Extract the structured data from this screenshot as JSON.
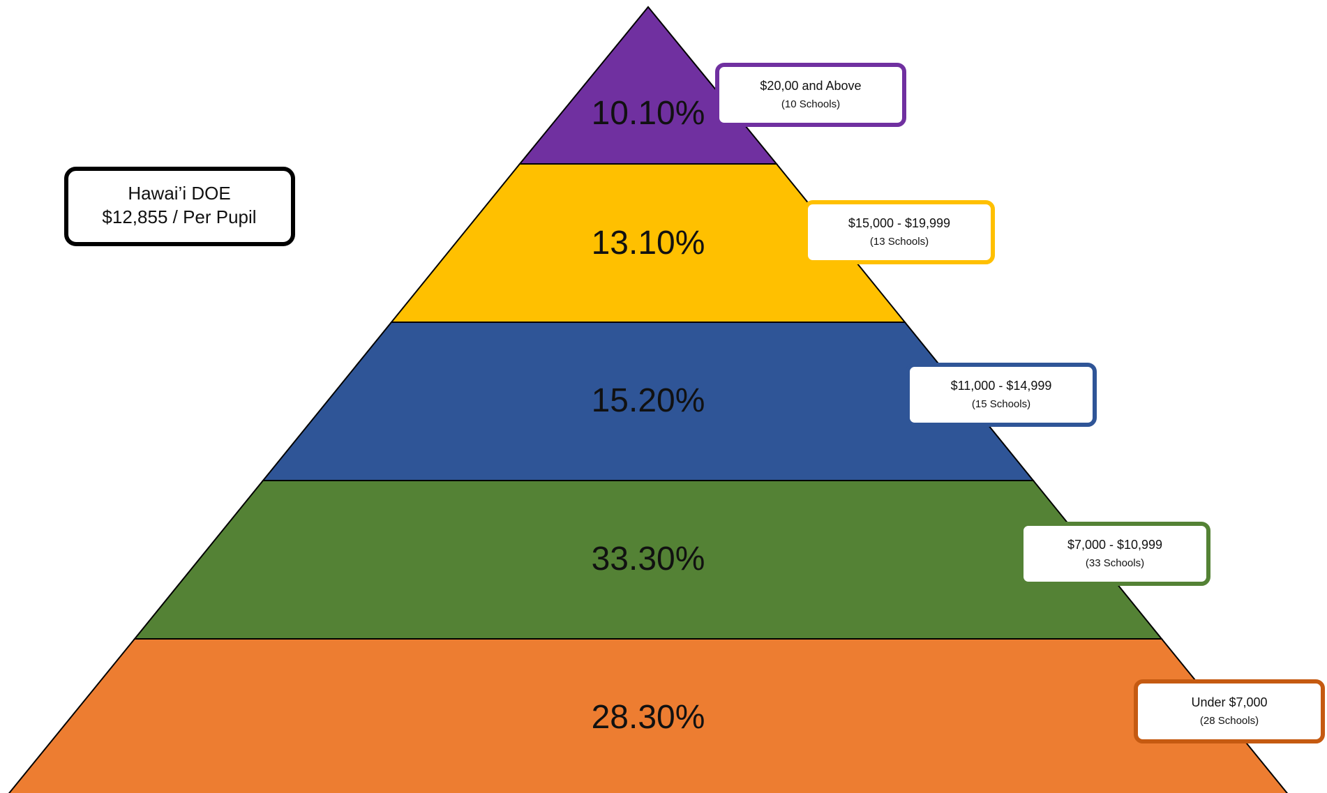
{
  "summary": {
    "line1": "Hawai’i DOE",
    "line2": "$12,855 / Per Pupil",
    "border_color": "#000000"
  },
  "tiers": [
    {
      "percent": "10.10%",
      "range": "$20,00 and Above",
      "schools": "(10 Schools)",
      "color": "#7030A0"
    },
    {
      "percent": "13.10%",
      "range": "$15,000 - $19,999",
      "schools": "(13 Schools)",
      "color": "#FFC000"
    },
    {
      "percent": "15.20%",
      "range": "$11,000 - $14,999",
      "schools": "(15 Schools)",
      "color": "#2F5597"
    },
    {
      "percent": "33.30%",
      "range": "$7,000 - $10,999",
      "schools": "(33 Schools)",
      "color": "#548235"
    },
    {
      "percent": "28.30%",
      "range": "Under $7,000",
      "schools": "(28 Schools)",
      "color": "#ED7D31"
    }
  ],
  "callout_border_colors": [
    "#7030A0",
    "#FFC000",
    "#2F5597",
    "#548235",
    "#C55A11"
  ]
}
